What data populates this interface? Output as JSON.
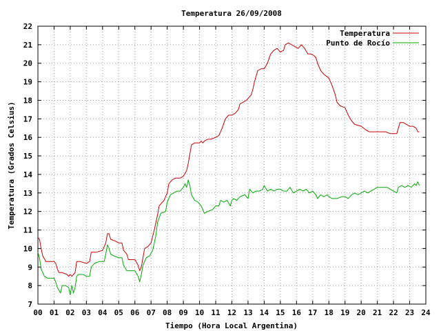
{
  "chart_data": {
    "type": "line",
    "title": "Temperatura 26/09/2008",
    "xlabel": "Tiempo (Hora Local Argentina)",
    "ylabel": "Temperatura (Grados Celsius)",
    "xlim": [
      0,
      24
    ],
    "ylim": [
      7,
      22
    ],
    "x_ticks": [
      "00",
      "01",
      "02",
      "03",
      "04",
      "05",
      "06",
      "07",
      "08",
      "09",
      "10",
      "11",
      "12",
      "13",
      "14",
      "15",
      "16",
      "17",
      "18",
      "19",
      "20",
      "21",
      "22",
      "23",
      "24"
    ],
    "y_ticks": [
      "7",
      "8",
      "9",
      "10",
      "11",
      "12",
      "13",
      "14",
      "15",
      "16",
      "17",
      "18",
      "19",
      "20",
      "21",
      "22"
    ],
    "grid": true,
    "legend_position": "top-right",
    "series": [
      {
        "name": "Temperatura",
        "color": "#cc0000",
        "points": [
          [
            0.0,
            10.6
          ],
          [
            0.1,
            10.5
          ],
          [
            0.2,
            10.0
          ],
          [
            0.3,
            9.6
          ],
          [
            0.5,
            9.3
          ],
          [
            0.8,
            9.3
          ],
          [
            1.0,
            9.3
          ],
          [
            1.1,
            9.2
          ],
          [
            1.2,
            8.9
          ],
          [
            1.3,
            8.7
          ],
          [
            1.5,
            8.7
          ],
          [
            1.8,
            8.6
          ],
          [
            1.9,
            8.5
          ],
          [
            2.0,
            8.6
          ],
          [
            2.1,
            8.5
          ],
          [
            2.2,
            8.6
          ],
          [
            2.3,
            8.7
          ],
          [
            2.4,
            9.3
          ],
          [
            2.6,
            9.3
          ],
          [
            3.0,
            9.2
          ],
          [
            3.2,
            9.3
          ],
          [
            3.3,
            9.8
          ],
          [
            3.6,
            9.8
          ],
          [
            4.0,
            9.9
          ],
          [
            4.2,
            10.3
          ],
          [
            4.3,
            10.8
          ],
          [
            4.4,
            10.8
          ],
          [
            4.5,
            10.5
          ],
          [
            4.8,
            10.4
          ],
          [
            5.0,
            10.3
          ],
          [
            5.2,
            10.3
          ],
          [
            5.3,
            9.9
          ],
          [
            5.5,
            9.7
          ],
          [
            5.6,
            9.4
          ],
          [
            5.8,
            9.4
          ],
          [
            6.0,
            9.4
          ],
          [
            6.2,
            9.1
          ],
          [
            6.3,
            8.8
          ],
          [
            6.4,
            9.0
          ],
          [
            6.5,
            9.5
          ],
          [
            6.6,
            10.0
          ],
          [
            6.8,
            10.1
          ],
          [
            7.0,
            10.3
          ],
          [
            7.2,
            11.0
          ],
          [
            7.4,
            11.8
          ],
          [
            7.5,
            12.3
          ],
          [
            7.8,
            12.6
          ],
          [
            8.0,
            13.0
          ],
          [
            8.1,
            13.5
          ],
          [
            8.3,
            13.7
          ],
          [
            8.5,
            13.8
          ],
          [
            8.8,
            13.8
          ],
          [
            9.0,
            13.9
          ],
          [
            9.2,
            14.2
          ],
          [
            9.3,
            14.6
          ],
          [
            9.4,
            15.1
          ],
          [
            9.5,
            15.6
          ],
          [
            9.7,
            15.7
          ],
          [
            10.0,
            15.7
          ],
          [
            10.1,
            15.8
          ],
          [
            10.2,
            15.7
          ],
          [
            10.3,
            15.8
          ],
          [
            10.5,
            15.9
          ],
          [
            10.7,
            15.9
          ],
          [
            11.0,
            16.0
          ],
          [
            11.2,
            16.1
          ],
          [
            11.4,
            16.5
          ],
          [
            11.6,
            17.0
          ],
          [
            11.8,
            17.2
          ],
          [
            12.0,
            17.2
          ],
          [
            12.2,
            17.3
          ],
          [
            12.4,
            17.5
          ],
          [
            12.5,
            17.8
          ],
          [
            12.7,
            17.9
          ],
          [
            12.9,
            18.0
          ],
          [
            13.0,
            18.1
          ],
          [
            13.2,
            18.3
          ],
          [
            13.3,
            18.6
          ],
          [
            13.4,
            19.0
          ],
          [
            13.6,
            19.6
          ],
          [
            13.8,
            19.7
          ],
          [
            14.0,
            19.7
          ],
          [
            14.2,
            20.0
          ],
          [
            14.4,
            20.5
          ],
          [
            14.6,
            20.7
          ],
          [
            14.8,
            20.8
          ],
          [
            15.0,
            20.6
          ],
          [
            15.2,
            20.7
          ],
          [
            15.3,
            21.0
          ],
          [
            15.5,
            21.1
          ],
          [
            15.7,
            21.0
          ],
          [
            15.9,
            20.9
          ],
          [
            16.1,
            20.8
          ],
          [
            16.3,
            21.0
          ],
          [
            16.5,
            20.8
          ],
          [
            16.7,
            20.5
          ],
          [
            16.9,
            20.5
          ],
          [
            17.1,
            20.4
          ],
          [
            17.2,
            20.3
          ],
          [
            17.3,
            20.0
          ],
          [
            17.5,
            19.6
          ],
          [
            17.7,
            19.4
          ],
          [
            18.0,
            19.2
          ],
          [
            18.2,
            18.8
          ],
          [
            18.4,
            18.3
          ],
          [
            18.5,
            17.9
          ],
          [
            18.7,
            17.7
          ],
          [
            19.0,
            17.6
          ],
          [
            19.2,
            17.2
          ],
          [
            19.4,
            16.9
          ],
          [
            19.6,
            16.7
          ],
          [
            20.0,
            16.6
          ],
          [
            20.3,
            16.4
          ],
          [
            20.5,
            16.3
          ],
          [
            21.0,
            16.3
          ],
          [
            21.5,
            16.3
          ],
          [
            21.8,
            16.2
          ],
          [
            22.0,
            16.2
          ],
          [
            22.2,
            16.2
          ],
          [
            22.3,
            16.5
          ],
          [
            22.4,
            16.8
          ],
          [
            22.6,
            16.8
          ],
          [
            22.8,
            16.7
          ],
          [
            23.0,
            16.6
          ],
          [
            23.2,
            16.6
          ],
          [
            23.4,
            16.5
          ],
          [
            23.5,
            16.3
          ],
          [
            23.6,
            16.3
          ]
        ]
      },
      {
        "name": "Punto de Rocío",
        "color": "#00aa00",
        "points": [
          [
            0.0,
            9.8
          ],
          [
            0.1,
            9.5
          ],
          [
            0.2,
            8.9
          ],
          [
            0.4,
            8.5
          ],
          [
            0.6,
            8.4
          ],
          [
            1.0,
            8.4
          ],
          [
            1.1,
            8.2
          ],
          [
            1.2,
            7.9
          ],
          [
            1.4,
            7.6
          ],
          [
            1.5,
            8.0
          ],
          [
            1.7,
            8.0
          ],
          [
            1.9,
            7.9
          ],
          [
            2.0,
            7.5
          ],
          [
            2.1,
            8.0
          ],
          [
            2.2,
            7.6
          ],
          [
            2.3,
            7.9
          ],
          [
            2.4,
            8.5
          ],
          [
            2.5,
            8.6
          ],
          [
            2.8,
            8.6
          ],
          [
            3.0,
            8.5
          ],
          [
            3.2,
            8.5
          ],
          [
            3.3,
            9.0
          ],
          [
            3.5,
            9.2
          ],
          [
            3.8,
            9.3
          ],
          [
            4.1,
            9.3
          ],
          [
            4.2,
            9.7
          ],
          [
            4.3,
            10.2
          ],
          [
            4.4,
            10.0
          ],
          [
            4.5,
            9.7
          ],
          [
            4.7,
            9.6
          ],
          [
            5.0,
            9.5
          ],
          [
            5.2,
            9.5
          ],
          [
            5.3,
            9.1
          ],
          [
            5.5,
            8.8
          ],
          [
            5.7,
            8.8
          ],
          [
            6.0,
            8.8
          ],
          [
            6.2,
            8.5
          ],
          [
            6.3,
            8.2
          ],
          [
            6.4,
            8.6
          ],
          [
            6.5,
            9.1
          ],
          [
            6.7,
            9.5
          ],
          [
            6.9,
            9.6
          ],
          [
            7.1,
            9.9
          ],
          [
            7.3,
            10.7
          ],
          [
            7.4,
            11.4
          ],
          [
            7.6,
            11.9
          ],
          [
            7.9,
            12.0
          ],
          [
            8.0,
            12.5
          ],
          [
            8.2,
            12.9
          ],
          [
            8.4,
            13.0
          ],
          [
            8.6,
            13.1
          ],
          [
            8.8,
            13.1
          ],
          [
            9.0,
            13.3
          ],
          [
            9.1,
            13.5
          ],
          [
            9.2,
            13.3
          ],
          [
            9.3,
            13.7
          ],
          [
            9.4,
            13.4
          ],
          [
            9.5,
            12.9
          ],
          [
            9.7,
            12.6
          ],
          [
            9.9,
            12.5
          ],
          [
            10.1,
            12.3
          ],
          [
            10.2,
            12.1
          ],
          [
            10.3,
            11.9
          ],
          [
            10.5,
            12.0
          ],
          [
            10.8,
            12.1
          ],
          [
            11.0,
            12.3
          ],
          [
            11.2,
            12.3
          ],
          [
            11.3,
            12.6
          ],
          [
            11.5,
            12.5
          ],
          [
            11.7,
            12.6
          ],
          [
            11.9,
            12.3
          ],
          [
            12.0,
            12.6
          ],
          [
            12.1,
            12.7
          ],
          [
            12.3,
            12.6
          ],
          [
            12.5,
            12.8
          ],
          [
            12.8,
            12.9
          ],
          [
            13.0,
            12.7
          ],
          [
            13.1,
            13.2
          ],
          [
            13.3,
            13.0
          ],
          [
            13.5,
            13.1
          ],
          [
            13.7,
            13.1
          ],
          [
            13.9,
            13.2
          ],
          [
            14.0,
            13.4
          ],
          [
            14.2,
            13.1
          ],
          [
            14.4,
            13.2
          ],
          [
            14.6,
            13.1
          ],
          [
            14.8,
            13.2
          ],
          [
            15.0,
            13.2
          ],
          [
            15.2,
            13.1
          ],
          [
            15.4,
            13.1
          ],
          [
            15.6,
            13.3
          ],
          [
            15.8,
            13.0
          ],
          [
            16.0,
            13.1
          ],
          [
            16.2,
            13.2
          ],
          [
            16.4,
            13.1
          ],
          [
            16.6,
            13.2
          ],
          [
            16.8,
            13.0
          ],
          [
            17.0,
            13.1
          ],
          [
            17.2,
            12.9
          ],
          [
            17.3,
            12.7
          ],
          [
            17.5,
            12.9
          ],
          [
            17.7,
            12.8
          ],
          [
            17.9,
            12.9
          ],
          [
            18.0,
            12.8
          ],
          [
            18.2,
            12.7
          ],
          [
            18.5,
            12.7
          ],
          [
            18.8,
            12.8
          ],
          [
            19.0,
            12.8
          ],
          [
            19.2,
            12.7
          ],
          [
            19.4,
            12.9
          ],
          [
            19.6,
            13.0
          ],
          [
            19.8,
            12.9
          ],
          [
            20.0,
            13.0
          ],
          [
            20.2,
            13.1
          ],
          [
            20.4,
            13.0
          ],
          [
            20.6,
            13.1
          ],
          [
            20.8,
            13.2
          ],
          [
            21.0,
            13.3
          ],
          [
            21.2,
            13.3
          ],
          [
            21.4,
            13.3
          ],
          [
            21.6,
            13.3
          ],
          [
            21.8,
            13.2
          ],
          [
            22.0,
            13.1
          ],
          [
            22.2,
            13.0
          ],
          [
            22.3,
            13.3
          ],
          [
            22.5,
            13.4
          ],
          [
            22.7,
            13.3
          ],
          [
            22.9,
            13.4
          ],
          [
            23.1,
            13.3
          ],
          [
            23.3,
            13.5
          ],
          [
            23.4,
            13.4
          ],
          [
            23.5,
            13.6
          ],
          [
            23.6,
            13.4
          ]
        ]
      }
    ]
  }
}
